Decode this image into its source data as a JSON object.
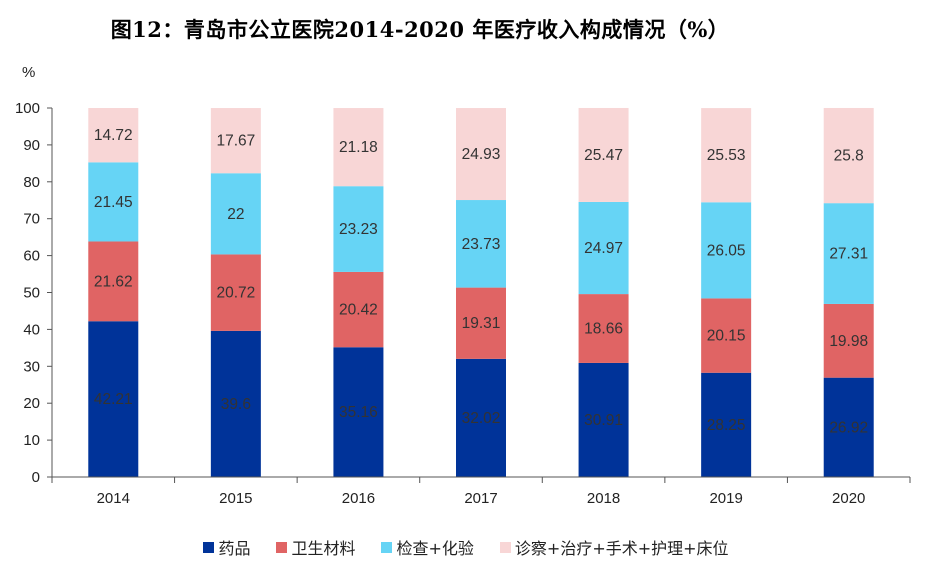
{
  "chart_data": {
    "type": "bar",
    "stacked": true,
    "title": "图12：青岛市公立医院2014-2020 年医疗收入构成情况（%）",
    "ylabel": "%",
    "ylim": [
      0,
      100
    ],
    "yticks": [
      0,
      10,
      20,
      30,
      40,
      50,
      60,
      70,
      80,
      90,
      100
    ],
    "grid": false,
    "legend_position": "bottom",
    "categories": [
      "2014",
      "2015",
      "2016",
      "2017",
      "2018",
      "2019",
      "2020"
    ],
    "series": [
      {
        "name": "药品",
        "color": "#003399",
        "values": [
          42.21,
          39.6,
          35.16,
          32.02,
          30.91,
          28.25,
          26.92
        ]
      },
      {
        "name": "卫生材料",
        "color": "#e06464",
        "values": [
          21.62,
          20.72,
          20.42,
          19.31,
          18.66,
          20.15,
          19.98
        ]
      },
      {
        "name": "检查+化验",
        "color": "#66d4f5",
        "values": [
          21.45,
          22,
          23.23,
          23.73,
          24.97,
          26.05,
          27.31
        ]
      },
      {
        "name": "诊察+治疗+手术+护理+床位",
        "color": "#f8d6d6",
        "values": [
          14.72,
          17.67,
          21.18,
          24.93,
          25.47,
          25.53,
          25.8
        ]
      }
    ]
  }
}
